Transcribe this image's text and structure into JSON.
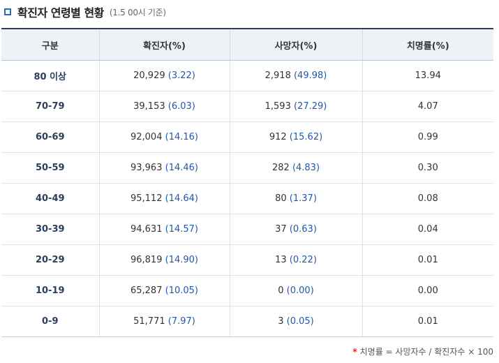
{
  "header": {
    "title": "확진자 연령별 현황",
    "subtitle": "(1.5 00시 기준)"
  },
  "table": {
    "columns": [
      "구분",
      "확진자(%)",
      "사망자(%)",
      "치명률(%)"
    ],
    "rows": [
      {
        "age": "80 이상",
        "confirmed": "20,929",
        "confirmed_pct": "(3.22)",
        "deaths": "2,918",
        "deaths_pct": "(49.98)",
        "fatality": "13.94"
      },
      {
        "age": "70-79",
        "confirmed": "39,153",
        "confirmed_pct": "(6.03)",
        "deaths": "1,593",
        "deaths_pct": "(27.29)",
        "fatality": "4.07"
      },
      {
        "age": "60-69",
        "confirmed": "92,004",
        "confirmed_pct": "(14.16)",
        "deaths": "912",
        "deaths_pct": "(15.62)",
        "fatality": "0.99"
      },
      {
        "age": "50-59",
        "confirmed": "93,963",
        "confirmed_pct": "(14.46)",
        "deaths": "282",
        "deaths_pct": "(4.83)",
        "fatality": "0.30"
      },
      {
        "age": "40-49",
        "confirmed": "95,112",
        "confirmed_pct": "(14.64)",
        "deaths": "80",
        "deaths_pct": "(1.37)",
        "fatality": "0.08"
      },
      {
        "age": "30-39",
        "confirmed": "94,631",
        "confirmed_pct": "(14.57)",
        "deaths": "37",
        "deaths_pct": "(0.63)",
        "fatality": "0.04"
      },
      {
        "age": "20-29",
        "confirmed": "96,819",
        "confirmed_pct": "(14.90)",
        "deaths": "13",
        "deaths_pct": "(0.22)",
        "fatality": "0.01"
      },
      {
        "age": "10-19",
        "confirmed": "65,287",
        "confirmed_pct": "(10.05)",
        "deaths": "0",
        "deaths_pct": "(0.00)",
        "fatality": "0.00"
      },
      {
        "age": "0-9",
        "confirmed": "51,771",
        "confirmed_pct": "(7.97)",
        "deaths": "3",
        "deaths_pct": "(0.05)",
        "fatality": "0.01"
      }
    ]
  },
  "footnote": {
    "mark": "*",
    "text": "치명률 = 사망자수 / 확진자수 × 100"
  },
  "colors": {
    "accent": "#1f6fb5",
    "header_border": "#2b3e5c",
    "percent_text": "#2457a6",
    "footnote_mark": "#d0262b"
  },
  "icons": {
    "title_marker": "square-outline-icon"
  }
}
